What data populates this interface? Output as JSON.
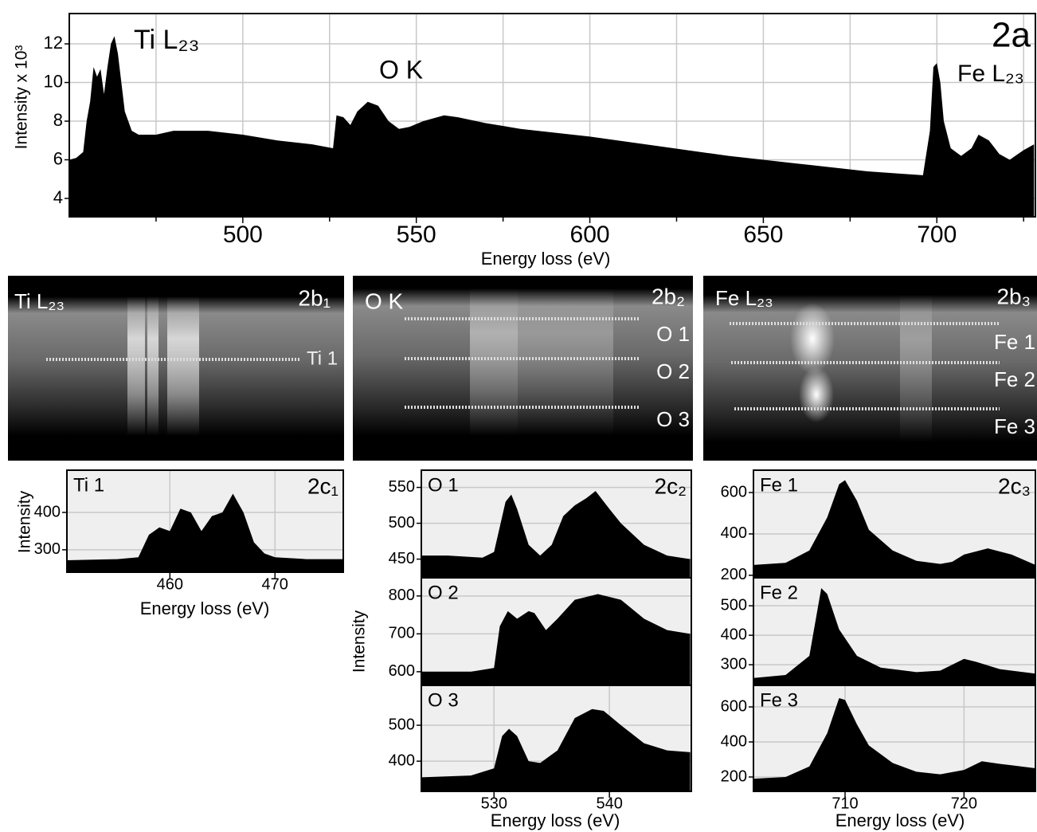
{
  "chart_data": [
    {
      "type": "area",
      "panel_label": "2a",
      "x_label": "Energy loss (eV)",
      "y_label": "Intensity x 10³",
      "annotations": [
        "Ti L₂₃",
        "O K",
        "Fe L₂₃"
      ],
      "x": [
        450,
        452,
        454,
        455,
        456,
        457,
        458,
        459,
        460,
        461,
        462,
        463,
        464,
        465,
        466,
        468,
        470,
        475,
        480,
        490,
        500,
        510,
        520,
        526,
        527,
        529,
        531,
        533,
        536,
        539,
        542,
        545,
        548,
        552,
        558,
        562,
        570,
        580,
        600,
        620,
        640,
        660,
        680,
        696,
        698,
        699,
        700,
        701,
        702,
        704,
        707,
        710,
        712,
        715,
        718,
        721,
        725,
        728
      ],
      "values": [
        6.0,
        6.1,
        6.4,
        8.0,
        9.0,
        10.8,
        10.3,
        10.7,
        9.4,
        10.8,
        12.0,
        12.4,
        11.5,
        10.0,
        8.5,
        7.5,
        7.3,
        7.3,
        7.5,
        7.5,
        7.3,
        7.0,
        6.8,
        6.6,
        8.3,
        8.2,
        7.8,
        8.5,
        9.0,
        8.8,
        8.0,
        7.6,
        7.7,
        8.0,
        8.3,
        8.2,
        7.9,
        7.6,
        7.2,
        6.7,
        6.2,
        5.8,
        5.4,
        5.2,
        7.5,
        10.8,
        11.0,
        10.0,
        8.0,
        6.6,
        6.2,
        6.6,
        7.3,
        7.0,
        6.3,
        6.0,
        6.5,
        6.8
      ],
      "color": "#000000",
      "xlim": [
        450,
        728.4
      ],
      "ylim": [
        3.05,
        13.57
      ],
      "xticks": [
        500,
        550,
        600,
        650,
        700
      ],
      "minor_xticks": [
        475,
        525,
        575,
        625,
        675,
        725
      ],
      "yticks": [
        4,
        6,
        8,
        10,
        12
      ],
      "grid": true
    },
    {
      "type": "area",
      "title": "Ti 1",
      "panel_label": "2c₁",
      "x_label": "Energy loss (eV)",
      "y_label": "Intensity",
      "x": [
        450.2,
        455,
        457,
        458,
        459,
        460,
        461,
        462,
        463,
        464,
        465,
        466,
        467,
        468,
        469,
        470,
        473,
        476.5
      ],
      "values": [
        272,
        275,
        280,
        340,
        360,
        350,
        410,
        400,
        350,
        390,
        400,
        450,
        400,
        320,
        290,
        280,
        275,
        275
      ],
      "color": "#000000",
      "xlim": [
        450.2,
        476.5
      ],
      "ylim": [
        240,
        513
      ],
      "xticks": [
        460,
        470
      ],
      "yticks": [
        300,
        400
      ],
      "grid": true
    },
    {
      "type": "area",
      "title": "O 1",
      "panel_label": "2c₂",
      "x": [
        523.7,
        526,
        529,
        530,
        531,
        531.5,
        532,
        533,
        534,
        535,
        536,
        537,
        538,
        538.8,
        540,
        541,
        543,
        545,
        547
      ],
      "values": [
        455,
        455,
        452,
        460,
        530,
        540,
        520,
        470,
        455,
        470,
        510,
        525,
        535,
        545,
        520,
        500,
        470,
        455,
        450
      ],
      "color": "#000000",
      "xlim": [
        523.7,
        547.1
      ],
      "ylim": [
        424,
        574
      ],
      "yticks": [
        450,
        500,
        550
      ],
      "grid": true
    },
    {
      "type": "area",
      "title": "O 2",
      "y_label": "Intensity",
      "x": [
        523.7,
        528,
        529,
        530,
        530.5,
        531.2,
        532,
        533,
        533.5,
        534.5,
        535.5,
        537,
        539,
        541,
        543,
        545,
        547
      ],
      "values": [
        600,
        600,
        605,
        610,
        720,
        760,
        740,
        760,
        755,
        710,
        740,
        790,
        805,
        790,
        740,
        710,
        700
      ],
      "color": "#000000",
      "xlim": [
        523.7,
        547.1
      ],
      "ylim": [
        564,
        848
      ],
      "yticks": [
        600,
        700,
        800
      ],
      "grid": true
    },
    {
      "type": "area",
      "title": "O 3",
      "x_label": "Energy loss (eV)",
      "x": [
        523.7,
        528,
        530,
        530.7,
        531.3,
        532,
        533,
        534,
        535.5,
        537,
        538.5,
        539.5,
        541,
        543,
        545,
        547
      ],
      "values": [
        355,
        360,
        380,
        470,
        490,
        470,
        400,
        395,
        430,
        520,
        545,
        540,
        500,
        450,
        430,
        425
      ],
      "color": "#000000",
      "xlim": [
        523.7,
        547.1
      ],
      "ylim": [
        316,
        611
      ],
      "xticks": [
        530,
        540
      ],
      "yticks": [
        400,
        500
      ],
      "grid": true
    },
    {
      "type": "area",
      "title": "Fe 1",
      "panel_label": "2c₃",
      "x": [
        702.3,
        705,
        707,
        708.5,
        709.5,
        710,
        711,
        712,
        714,
        716,
        718,
        719,
        720,
        722,
        724,
        726
      ],
      "values": [
        250,
        260,
        320,
        480,
        640,
        660,
        560,
        420,
        320,
        270,
        255,
        265,
        300,
        330,
        300,
        250
      ],
      "color": "#000000",
      "xlim": [
        702.3,
        726
      ],
      "ylim": [
        188,
        708
      ],
      "yticks": [
        200,
        400,
        600
      ],
      "grid": true
    },
    {
      "type": "area",
      "title": "Fe 2",
      "x": [
        702.3,
        705,
        707,
        708,
        708.5,
        709.5,
        711,
        713,
        716,
        718,
        720,
        721,
        723,
        726
      ],
      "values": [
        255,
        265,
        330,
        560,
        540,
        420,
        330,
        290,
        275,
        280,
        320,
        310,
        285,
        270
      ],
      "color": "#000000",
      "xlim": [
        702.3,
        726
      ],
      "ylim": [
        230,
        595
      ],
      "yticks": [
        300,
        400,
        500
      ],
      "grid": true
    },
    {
      "type": "area",
      "title": "Fe 3",
      "x_label": "Energy loss (eV)",
      "x": [
        702.3,
        705,
        707,
        708.5,
        709.5,
        710,
        711,
        712,
        714,
        716,
        718,
        720,
        721.5,
        723,
        726
      ],
      "values": [
        190,
        200,
        260,
        450,
        650,
        640,
        500,
        380,
        280,
        230,
        215,
        240,
        290,
        275,
        250
      ],
      "color": "#000000",
      "xlim": [
        702.3,
        726
      ],
      "ylim": [
        118,
        723
      ],
      "xticks": [
        710,
        720
      ],
      "yticks": [
        200,
        400,
        600
      ],
      "grid": true
    }
  ],
  "image_panels": [
    {
      "title": "Ti L₂₃",
      "label": "2b₁",
      "line_labels": [
        "Ti 1"
      ]
    },
    {
      "title": "O K",
      "label": "2b₂",
      "line_labels": [
        "O 1",
        "O 2",
        "O 3"
      ]
    },
    {
      "title": "Fe L₂₃",
      "label": "2b₃",
      "line_labels": [
        "Fe 1",
        "Fe 2",
        "Fe 3"
      ]
    }
  ]
}
